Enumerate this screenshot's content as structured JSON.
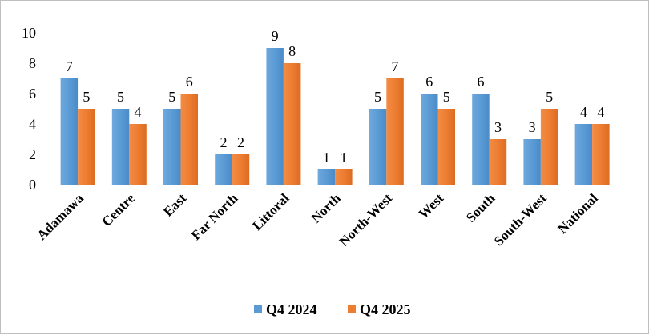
{
  "chart_data": {
    "type": "bar",
    "categories": [
      "Adamawa",
      "Centre",
      "East",
      "Far North",
      "Littoral",
      "North",
      "North-West",
      "West",
      "South",
      "South-West",
      "National"
    ],
    "series": [
      {
        "name": "Q4 2024",
        "color": "#5b9bd5",
        "values": [
          7,
          5,
          5,
          2,
          9,
          1,
          5,
          6,
          6,
          3,
          4
        ]
      },
      {
        "name": "Q4 2025",
        "color": "#ed7d31",
        "values": [
          5,
          4,
          6,
          2,
          8,
          1,
          7,
          5,
          3,
          5,
          4
        ]
      }
    ],
    "ylim": [
      0,
      10
    ],
    "yticks": [
      "0",
      "2",
      "4",
      "6",
      "8",
      "10"
    ],
    "grid": false,
    "legend_position": "bottom"
  }
}
